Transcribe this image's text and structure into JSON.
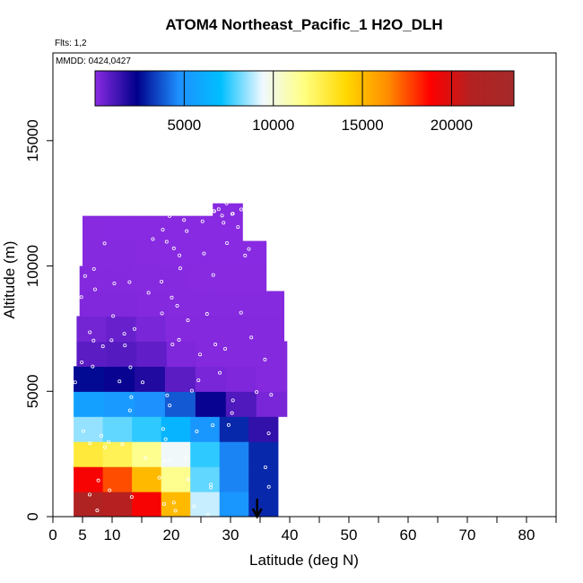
{
  "chart_data": {
    "type": "heatmap",
    "title": "ATOM4 Northeast_Pacific_1 H2O_DLH",
    "subtitle": "Flts: 1,2",
    "annotation": "MMDD: 0424,0427",
    "xlabel": "Latitude (deg N)",
    "ylabel": "Altitude (m)",
    "xlim": [
      0,
      85
    ],
    "ylim": [
      0,
      18500
    ],
    "xticks": [
      0,
      5,
      10,
      20,
      30,
      40,
      50,
      60,
      70,
      80
    ],
    "yticks": [
      0,
      5000,
      10000,
      15000
    ],
    "grid": false,
    "legend_position": "top (horizontal colorbar)",
    "colorbar": {
      "range": [
        0,
        23500
      ],
      "ticks": [
        5000,
        10000,
        15000,
        20000
      ],
      "colors": [
        "#8a2be2",
        "#00008b",
        "#1e90ff",
        "#00bfff",
        "#f0f8ff",
        "#ffff80",
        "#ffd700",
        "#ff8c00",
        "#ff0000",
        "#b22222",
        "#a52a2a"
      ]
    },
    "arrow_marker_latitude": 34.5,
    "profile": [
      {
        "alt": [
          0,
          1000
        ],
        "lat": [
          3.5,
          38
        ],
        "values": [
          21500,
          21000,
          19000,
          15000,
          9000,
          5000,
          3000
        ]
      },
      {
        "alt": [
          1000,
          2000
        ],
        "lat": [
          3.5,
          38
        ],
        "values": [
          19000,
          17500,
          15000,
          11500,
          8000,
          4500,
          3000
        ]
      },
      {
        "alt": [
          2000,
          3000
        ],
        "lat": [
          3.5,
          38
        ],
        "values": [
          13000,
          12500,
          11500,
          9500,
          7500,
          4500,
          3000
        ]
      },
      {
        "alt": [
          3000,
          4000
        ],
        "lat": [
          3.5,
          38
        ],
        "values": [
          8500,
          8000,
          7500,
          6500,
          5000,
          3000,
          1500
        ]
      },
      {
        "alt": [
          4000,
          5000
        ],
        "lat": [
          3.5,
          39.5
        ],
        "values": [
          5500,
          5200,
          4800,
          3800,
          2200,
          1000,
          300
        ]
      },
      {
        "alt": [
          5000,
          6000
        ],
        "lat": [
          3.5,
          39.5
        ],
        "values": [
          2500,
          2200,
          1800,
          800,
          300,
          200,
          100
        ]
      },
      {
        "alt": [
          6000,
          7000
        ],
        "lat": [
          4,
          39.5
        ],
        "values": [
          800,
          900,
          700,
          200,
          100,
          100,
          100
        ]
      },
      {
        "alt": [
          7000,
          8000
        ],
        "lat": [
          4,
          39
        ],
        "values": [
          400,
          600,
          300,
          100,
          100,
          100,
          100
        ]
      },
      {
        "alt": [
          8000,
          9000
        ],
        "lat": [
          4.5,
          39
        ],
        "values": [
          150,
          150,
          100,
          80,
          60,
          60,
          60
        ]
      },
      {
        "alt": [
          9000,
          10000
        ],
        "lat": [
          4.5,
          36
        ],
        "values": [
          100,
          100,
          80,
          60,
          50,
          50,
          50
        ]
      },
      {
        "alt": [
          10000,
          11000
        ],
        "lat": [
          5,
          36
        ],
        "values": [
          70,
          60,
          50,
          40,
          40,
          40,
          40
        ]
      },
      {
        "alt": [
          11000,
          12000
        ],
        "lat": [
          5,
          32
        ],
        "values": [
          50,
          40,
          40,
          30,
          30,
          30,
          30
        ]
      },
      {
        "alt": [
          12000,
          12500
        ],
        "lat": [
          27,
          32
        ],
        "values": [
          30,
          30
        ]
      }
    ]
  }
}
